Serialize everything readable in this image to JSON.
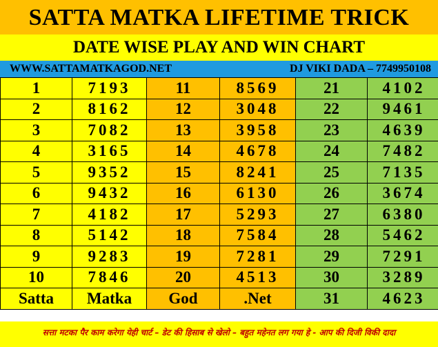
{
  "header": {
    "title": "SATTA MATKA LIFETIME TRICK",
    "subtitle": "DATE WISE PLAY AND WIN CHART",
    "website": "WWW.SATTAMATKAGOD.NET",
    "contact": "DJ VIKI DADA – 7749950108"
  },
  "colors": {
    "orange": "#ffc000",
    "yellow": "#ffff00",
    "blue_bar": "#1f9ae0",
    "green": "#92d050",
    "footer_text": "#c00000"
  },
  "rows": [
    [
      "1",
      "7193",
      "11",
      "8569",
      "21",
      "4102"
    ],
    [
      "2",
      "8162",
      "12",
      "3048",
      "22",
      "9461"
    ],
    [
      "3",
      "7082",
      "13",
      "3958",
      "23",
      "4639"
    ],
    [
      "4",
      "3165",
      "14",
      "4678",
      "24",
      "7482"
    ],
    [
      "5",
      "9352",
      "15",
      "8241",
      "25",
      "7135"
    ],
    [
      "6",
      "9432",
      "16",
      "6130",
      "26",
      "3674"
    ],
    [
      "7",
      "4182",
      "17",
      "5293",
      "27",
      "6380"
    ],
    [
      "8",
      "5142",
      "18",
      "7584",
      "28",
      "5462"
    ],
    [
      "9",
      "9283",
      "19",
      "7281",
      "29",
      "7291"
    ],
    [
      "10",
      "7846",
      "20",
      "4513",
      "30",
      "3289"
    ],
    [
      "Satta",
      "Matka",
      "God",
      ".Net",
      "31",
      "4623"
    ]
  ],
  "footer": {
    "text": "सत्ता मटका पैर काम करेगा येही चार्ट – डेट की हिसाब से खेलो – बहुत महेनत लग गया हे - आप की दिजी विकी दादा"
  }
}
